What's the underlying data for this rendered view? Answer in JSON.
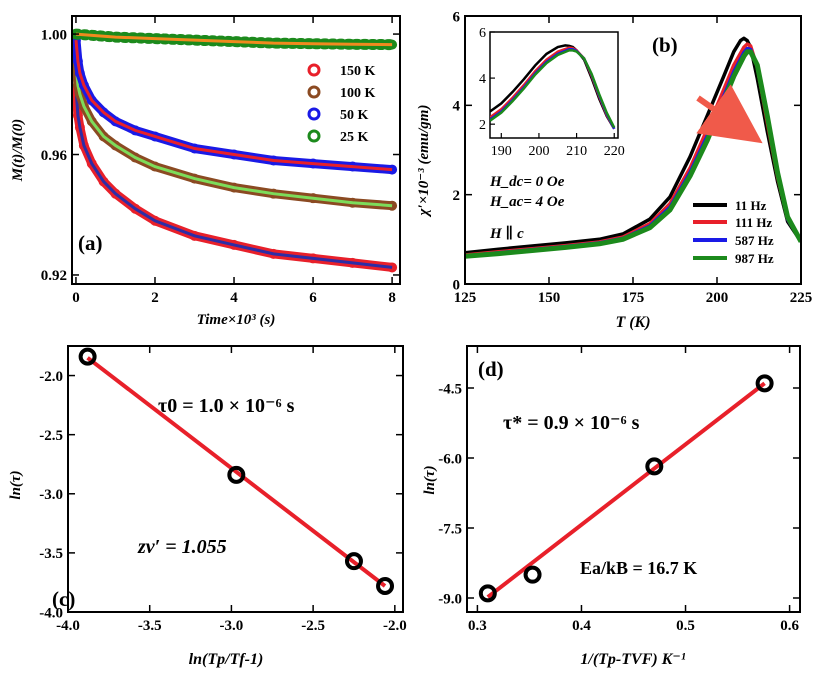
{
  "chart_data": [
    {
      "id": "a",
      "type": "line",
      "panel_label": "(a)",
      "xlabel": "Time×10³ (s)",
      "ylabel": "M(t)/M(0)",
      "xlim": [
        -0.1,
        8.2
      ],
      "ylim": [
        0.917,
        1.006
      ],
      "xticks": [
        0,
        2,
        4,
        6,
        8
      ],
      "xtick_labels": [
        "0",
        "2",
        "4",
        "6",
        "8"
      ],
      "yticks": [
        0.92,
        0.96,
        1.0
      ],
      "ytick_labels": [
        "0.92",
        "0.96",
        "1.00"
      ],
      "series": [
        {
          "name": "150 K",
          "color": "#e8202a",
          "fit_color": "#2d2da6",
          "x": [
            0,
            0.05,
            0.1,
            0.2,
            0.4,
            0.7,
            1,
            1.5,
            2,
            3,
            4,
            5,
            6,
            7,
            8
          ],
          "values": [
            0.982,
            0.973,
            0.969,
            0.963,
            0.957,
            0.951,
            0.947,
            0.942,
            0.938,
            0.933,
            0.93,
            0.927,
            0.9255,
            0.924,
            0.9225
          ]
        },
        {
          "name": "100 K",
          "color": "#8b4a22",
          "fit_color": "#7ddc5a",
          "x": [
            0,
            0.05,
            0.1,
            0.2,
            0.4,
            0.7,
            1,
            1.5,
            2,
            3,
            4,
            5,
            6,
            7,
            8
          ],
          "values": [
            0.991,
            0.983,
            0.98,
            0.976,
            0.971,
            0.966,
            0.963,
            0.959,
            0.956,
            0.952,
            0.949,
            0.947,
            0.9455,
            0.944,
            0.943
          ]
        },
        {
          "name": "50 K",
          "color": "#1a1ae6",
          "fit_color": "#e8202a",
          "x": [
            0,
            0.05,
            0.1,
            0.2,
            0.4,
            0.7,
            1,
            1.5,
            2,
            3,
            4,
            5,
            6,
            7,
            8
          ],
          "values": [
            0.998,
            0.991,
            0.987,
            0.983,
            0.978,
            0.974,
            0.971,
            0.968,
            0.966,
            0.962,
            0.96,
            0.958,
            0.957,
            0.956,
            0.955
          ]
        },
        {
          "name": "25 K",
          "color": "#1c8a1c",
          "fit_color": "#f08a1e",
          "x": [
            0,
            0.2,
            0.5,
            1,
            2,
            3,
            4,
            5,
            6,
            7,
            8
          ],
          "values": [
            1.0,
            0.9998,
            0.9995,
            0.999,
            0.9985,
            0.998,
            0.9975,
            0.997,
            0.9968,
            0.9966,
            0.9965
          ]
        }
      ]
    },
    {
      "id": "b",
      "type": "line",
      "panel_label": "(b)",
      "xlabel": "T (K)",
      "ylabel": "χ′×10⁻³ (emu/gm)",
      "xlim": [
        125,
        225
      ],
      "ylim": [
        0,
        6
      ],
      "xticks": [
        125,
        150,
        175,
        200,
        225
      ],
      "xtick_labels": [
        "125",
        "150",
        "175",
        "200",
        "225"
      ],
      "yticks": [
        0,
        2,
        4,
        6
      ],
      "ytick_labels": [
        "0",
        "2",
        "4",
        "6"
      ],
      "annotations": [
        "H_dc= 0 Oe",
        "H_ac= 4 Oe",
        "H ∥ c"
      ],
      "series": [
        {
          "name": "11 Hz",
          "color": "#000000",
          "x": [
            125,
            135,
            145,
            155,
            165,
            172,
            180,
            186,
            192,
            197,
            202,
            205,
            207,
            208,
            209,
            210,
            212,
            215,
            218,
            221,
            225
          ],
          "values": [
            0.7,
            0.78,
            0.85,
            0.92,
            1.0,
            1.12,
            1.45,
            1.95,
            2.85,
            3.75,
            4.65,
            5.2,
            5.45,
            5.5,
            5.45,
            5.3,
            4.6,
            3.4,
            2.3,
            1.4,
            0.95
          ]
        },
        {
          "name": "111 Hz",
          "color": "#e8202a",
          "x": [
            125,
            135,
            145,
            155,
            165,
            172,
            180,
            186,
            192,
            197,
            202,
            205,
            208,
            209,
            210,
            212,
            215,
            218,
            221,
            225
          ],
          "values": [
            0.65,
            0.72,
            0.79,
            0.86,
            0.94,
            1.05,
            1.35,
            1.8,
            2.6,
            3.45,
            4.35,
            4.9,
            5.3,
            5.37,
            5.33,
            4.85,
            3.6,
            2.4,
            1.45,
            0.95
          ]
        },
        {
          "name": "587 Hz",
          "color": "#1a1ae6",
          "x": [
            125,
            135,
            145,
            155,
            165,
            172,
            180,
            186,
            192,
            197,
            202,
            205,
            208,
            209,
            210,
            212,
            215,
            218,
            221,
            225
          ],
          "values": [
            0.63,
            0.7,
            0.77,
            0.84,
            0.92,
            1.02,
            1.3,
            1.72,
            2.5,
            3.3,
            4.2,
            4.75,
            5.18,
            5.27,
            5.25,
            4.9,
            3.7,
            2.45,
            1.45,
            0.95
          ]
        },
        {
          "name": "987 Hz",
          "color": "#1c8a1c",
          "x": [
            125,
            135,
            145,
            155,
            165,
            172,
            180,
            186,
            192,
            197,
            202,
            205,
            208,
            209,
            210,
            212,
            215,
            218,
            221,
            225
          ],
          "values": [
            0.62,
            0.68,
            0.75,
            0.82,
            0.9,
            1.0,
            1.26,
            1.66,
            2.42,
            3.2,
            4.1,
            4.65,
            5.1,
            5.2,
            5.2,
            4.9,
            3.75,
            2.5,
            1.5,
            0.95
          ]
        }
      ],
      "inset": {
        "xlim": [
          187,
          221
        ],
        "ylim": [
          1.4,
          6
        ],
        "xticks": [
          190,
          200,
          210,
          220
        ],
        "xtick_labels": [
          "190",
          "200",
          "210",
          "220"
        ],
        "yticks": [
          2,
          4,
          6
        ],
        "ytick_labels": [
          "2",
          "4",
          "6"
        ],
        "series": [
          {
            "name": "11 Hz",
            "color": "#000000",
            "x": [
              187,
              190,
              193,
              196,
              199,
              202,
              205,
              207,
              208,
              209,
              210,
              212,
              214,
              216,
              218,
              220
            ],
            "values": [
              2.55,
              2.9,
              3.4,
              3.95,
              4.55,
              5.05,
              5.35,
              5.42,
              5.4,
              5.35,
              5.2,
              4.8,
              4.0,
              3.1,
              2.35,
              1.8
            ]
          },
          {
            "name": "111 Hz",
            "color": "#e8202a",
            "x": [
              187,
              190,
              193,
              196,
              199,
              202,
              205,
              208,
              209,
              210,
              212,
              214,
              216,
              218,
              220
            ],
            "values": [
              2.3,
              2.65,
              3.15,
              3.7,
              4.3,
              4.8,
              5.15,
              5.32,
              5.3,
              5.2,
              4.85,
              4.1,
              3.2,
              2.4,
              1.8
            ]
          },
          {
            "name": "587 Hz",
            "color": "#1a1ae6",
            "x": [
              187,
              190,
              193,
              196,
              199,
              202,
              205,
              208,
              209,
              210,
              212,
              214,
              216,
              218,
              220
            ],
            "values": [
              2.2,
              2.55,
              3.05,
              3.6,
              4.2,
              4.7,
              5.05,
              5.25,
              5.25,
              5.17,
              4.85,
              4.15,
              3.25,
              2.45,
              1.8
            ]
          },
          {
            "name": "987 Hz",
            "color": "#1c8a1c",
            "x": [
              187,
              190,
              193,
              196,
              199,
              202,
              205,
              208,
              209,
              210,
              212,
              214,
              216,
              218,
              220
            ],
            "values": [
              2.15,
              2.5,
              3.0,
              3.55,
              4.15,
              4.65,
              5.0,
              5.2,
              5.2,
              5.15,
              4.85,
              4.18,
              3.3,
              2.5,
              1.85
            ]
          }
        ]
      }
    },
    {
      "id": "c",
      "type": "scatter",
      "panel_label": "(c)",
      "xlabel": "ln(Tp/Tf-1)",
      "ylabel": "ln(τ)",
      "xlim": [
        -4.0,
        -1.95
      ],
      "ylim": [
        -4.0,
        -1.75
      ],
      "xticks": [
        -4.0,
        -3.5,
        -3.0,
        -2.5,
        -2.0
      ],
      "xtick_labels": [
        "-4.0",
        "-3.5",
        "-3.0",
        "-2.5",
        "-2.0"
      ],
      "yticks": [
        -4.0,
        -3.5,
        -3.0,
        -2.5,
        -2.0
      ],
      "ytick_labels": [
        "-4.0",
        "-3.5",
        "-3.0",
        "-2.5",
        "-2.0"
      ],
      "annotations": [
        "τ0 = 1.0 × 10⁻⁶ s",
        "zν′ = 1.055"
      ],
      "points": {
        "x": [
          -3.88,
          -2.97,
          -2.25,
          -2.06
        ],
        "y": [
          -1.84,
          -2.84,
          -3.57,
          -3.78
        ]
      },
      "fit": {
        "x": [
          -3.88,
          -2.06
        ],
        "y": [
          -1.85,
          -3.78
        ]
      }
    },
    {
      "id": "d",
      "type": "scatter",
      "panel_label": "(d)",
      "xlabel": "1/(Tp-TVF) K⁻¹",
      "ylabel": "ln(τ)",
      "xlim": [
        0.29,
        0.61
      ],
      "ylim": [
        -9.3,
        -3.6
      ],
      "xticks": [
        0.3,
        0.4,
        0.5,
        0.6
      ],
      "xtick_labels": [
        "0.3",
        "0.4",
        "0.5",
        "0.6"
      ],
      "yticks": [
        -9.0,
        -7.5,
        -6.0,
        -4.5
      ],
      "ytick_labels": [
        "-9.0",
        "-7.5",
        "-6.0",
        "-4.5"
      ],
      "annotations": [
        "τ* = 0.9 × 10⁻⁶ s",
        "Ea/kB = 16.7 K"
      ],
      "points": {
        "x": [
          0.31,
          0.353,
          0.47,
          0.576
        ],
        "y": [
          -8.9,
          -8.5,
          -6.18,
          -4.4
        ]
      },
      "fit": {
        "x": [
          0.31,
          0.576
        ],
        "y": [
          -8.98,
          -4.4
        ]
      }
    }
  ]
}
